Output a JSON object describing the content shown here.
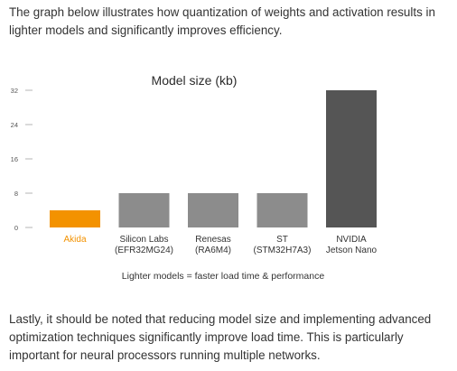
{
  "intro_text": "The graph below illustrates how quantization of weights and activation results in lighter models and significantly improves efficiency.",
  "outro_text": "Lastly, it should be noted that reducing model size and implementing advanced optimization techniques significantly improve load time. This is particularly important for neural processors running multiple networks.",
  "colors": {
    "highlight": "#f39200",
    "bar": "#8c8c8c",
    "bar_dark": "#555555",
    "axis": "#b5b5b5",
    "text": "#333333"
  },
  "chart_data": {
    "type": "bar",
    "title": "Model size (kb)",
    "caption": "Lighter models = faster load time & performance",
    "ylim": [
      0,
      32
    ],
    "yticks": [
      "32",
      "24",
      "16",
      "8",
      "0"
    ],
    "ytick_values": [
      32,
      24,
      16,
      8,
      0
    ],
    "grid": false,
    "categories": [
      {
        "line1": "Akida",
        "line2": ""
      },
      {
        "line1": "Silicon Labs",
        "line2": "(EFR32MG24)"
      },
      {
        "line1": "Renesas",
        "line2": "(RA6M4)"
      },
      {
        "line1": "ST",
        "line2": "(STM32H7A3)"
      },
      {
        "line1": "NVIDIA",
        "line2": "Jetson Nano"
      }
    ],
    "values": [
      4,
      8,
      8,
      8,
      32
    ]
  }
}
